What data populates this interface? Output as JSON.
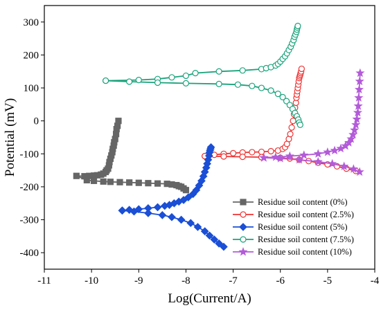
{
  "chart_data": {
    "type": "line",
    "xlabel": "Log(Current/A)",
    "ylabel": "Potential (mV)",
    "xlim": [
      -11,
      -4
    ],
    "ylim": [
      -450,
      350
    ],
    "xticks": [
      -11,
      -10,
      -9,
      -8,
      -7,
      -6,
      -5,
      -4
    ],
    "yticks": [
      -400,
      -300,
      -200,
      -100,
      0,
      100,
      200,
      300
    ],
    "xtick_labels": [
      "-11",
      "-10",
      "-9",
      "-8",
      "-7",
      "-6",
      "-5",
      "-4"
    ],
    "ytick_labels": [
      "-400",
      "-300",
      "-200",
      "-100",
      "0",
      "100",
      "200",
      "300"
    ],
    "grid": false,
    "legend_position": "bottom-right",
    "series": [
      {
        "name": "Residue soil content (0%)",
        "color": "#666666",
        "marker": "square",
        "filled": true,
        "x": [
          -9.43,
          -9.45,
          -9.47,
          -9.48,
          -9.5,
          -9.52,
          -9.53,
          -9.55,
          -9.56,
          -9.58,
          -9.6,
          -9.62,
          -9.63,
          -9.65,
          -9.68,
          -9.7,
          -9.75,
          -9.8,
          -9.88,
          -9.95,
          -10.05,
          -10.15,
          -10.32,
          -10.1,
          -9.95,
          -9.75,
          -9.6,
          -9.4,
          -9.2,
          -9.0,
          -8.8,
          -8.6,
          -8.4,
          -8.3,
          -8.2,
          -8.15,
          -8.1,
          -8.05,
          -8.0
        ],
        "y": [
          0,
          -15,
          -25,
          -40,
          -55,
          -65,
          -75,
          -85,
          -95,
          -105,
          -115,
          -125,
          -135,
          -145,
          -150,
          -155,
          -160,
          -163,
          -165,
          -166,
          -167,
          -168,
          -167,
          -180,
          -182,
          -184,
          -185,
          -186,
          -187,
          -188,
          -189,
          -190,
          -191,
          -193,
          -195,
          -198,
          -200,
          -205,
          -210
        ]
      },
      {
        "name": "Residue soil content (2.5%)",
        "color": "#ee3333",
        "marker": "circle",
        "filled": false,
        "x": [
          -7.6,
          -7.4,
          -7.2,
          -7.0,
          -6.8,
          -6.6,
          -6.4,
          -6.2,
          -6.05,
          -5.95,
          -5.9,
          -5.86,
          -5.82,
          -5.79,
          -5.76,
          -5.73,
          -5.71,
          -5.69,
          -5.67,
          -5.66,
          -5.65,
          -5.64,
          -5.63,
          -5.62,
          -5.61,
          -5.6,
          -5.59,
          -5.58,
          -5.57,
          -5.56,
          -5.55
        ],
        "y": [
          -107,
          -103,
          -100,
          -98,
          -96,
          -95,
          -94,
          -92,
          -90,
          -85,
          -80,
          -70,
          -55,
          -40,
          -20,
          0,
          20,
          40,
          55,
          70,
          80,
          90,
          100,
          110,
          120,
          130,
          135,
          140,
          145,
          150,
          158
        ],
        "x2": [
          -7.6,
          -7.2,
          -6.8,
          -6.4,
          -6.0,
          -5.8,
          -5.6,
          -5.4,
          -5.2,
          -5.0,
          -4.8,
          -4.6,
          -4.4
        ],
        "y2": [
          -107,
          -108,
          -109,
          -110,
          -112,
          -114,
          -118,
          -122,
          -127,
          -132,
          -138,
          -145,
          -152
        ]
      },
      {
        "name": "Residue soil content (5%)",
        "color": "#1a4fd6",
        "marker": "diamond",
        "filled": true,
        "x": [
          -9.35,
          -9.2,
          -9.0,
          -8.8,
          -8.6,
          -8.45,
          -8.35,
          -8.25,
          -8.15,
          -8.05,
          -7.95,
          -7.85,
          -7.78,
          -7.72,
          -7.67,
          -7.63,
          -7.6,
          -7.57,
          -7.55,
          -7.53,
          -7.51,
          -7.5,
          -7.49,
          -7.48,
          -7.47
        ],
        "y": [
          -272,
          -270,
          -268,
          -265,
          -262,
          -258,
          -255,
          -250,
          -245,
          -240,
          -232,
          -222,
          -210,
          -196,
          -182,
          -168,
          -155,
          -142,
          -130,
          -118,
          -106,
          -96,
          -90,
          -85,
          -80
        ],
        "x2": [
          -9.35,
          -9.1,
          -8.8,
          -8.5,
          -8.3,
          -8.1,
          -7.9,
          -7.75,
          -7.6,
          -7.5,
          -7.4,
          -7.3,
          -7.2
        ],
        "y2": [
          -272,
          -275,
          -280,
          -286,
          -292,
          -300,
          -310,
          -322,
          -335,
          -348,
          -360,
          -372,
          -382
        ]
      },
      {
        "name": "Residue soil content (7.5%)",
        "color": "#1aa37a",
        "marker": "circle",
        "filled": false,
        "x": [
          -9.7,
          -9.0,
          -8.6,
          -8.3,
          -8.0,
          -7.8,
          -7.3,
          -6.8,
          -6.4,
          -6.3,
          -6.2,
          -6.1,
          -6.05,
          -6.0,
          -5.95,
          -5.9,
          -5.86,
          -5.82,
          -5.78,
          -5.75,
          -5.72,
          -5.7,
          -5.68,
          -5.66,
          -5.65,
          -5.64,
          -5.63
        ],
        "y": [
          122,
          124,
          127,
          132,
          137,
          145,
          150,
          153,
          157,
          160,
          163,
          168,
          173,
          180,
          188,
          196,
          205,
          215,
          225,
          235,
          245,
          255,
          262,
          270,
          277,
          283,
          288
        ],
        "x2": [
          -9.7,
          -9.2,
          -8.6,
          -8.0,
          -7.3,
          -6.9,
          -6.6,
          -6.4,
          -6.2,
          -6.05,
          -5.95,
          -5.87,
          -5.8,
          -5.74,
          -5.69,
          -5.65,
          -5.62,
          -5.6,
          -5.58
        ],
        "y2": [
          122,
          119,
          116,
          114,
          112,
          110,
          106,
          100,
          92,
          82,
          72,
          60,
          48,
          36,
          24,
          14,
          4,
          -5,
          -12
        ]
      },
      {
        "name": "Residue soil content (10%)",
        "color": "#b35bd9",
        "marker": "star",
        "filled": true,
        "x": [
          -6.35,
          -6.1,
          -5.8,
          -5.5,
          -5.2,
          -5.0,
          -4.85,
          -4.72,
          -4.62,
          -4.55,
          -4.5,
          -4.46,
          -4.43,
          -4.4,
          -4.38,
          -4.36,
          -4.35,
          -4.34,
          -4.33,
          -4.32,
          -4.31
        ],
        "y": [
          -112,
          -110,
          -107,
          -104,
          -100,
          -95,
          -90,
          -84,
          -76,
          -66,
          -55,
          -42,
          -28,
          -12,
          5,
          25,
          45,
          70,
          95,
          120,
          145
        ],
        "x2": [
          -6.35,
          -6.0,
          -5.6,
          -5.2,
          -4.9,
          -4.65,
          -4.45,
          -4.32
        ],
        "y2": [
          -112,
          -114,
          -118,
          -124,
          -130,
          -138,
          -146,
          -155
        ]
      }
    ]
  }
}
